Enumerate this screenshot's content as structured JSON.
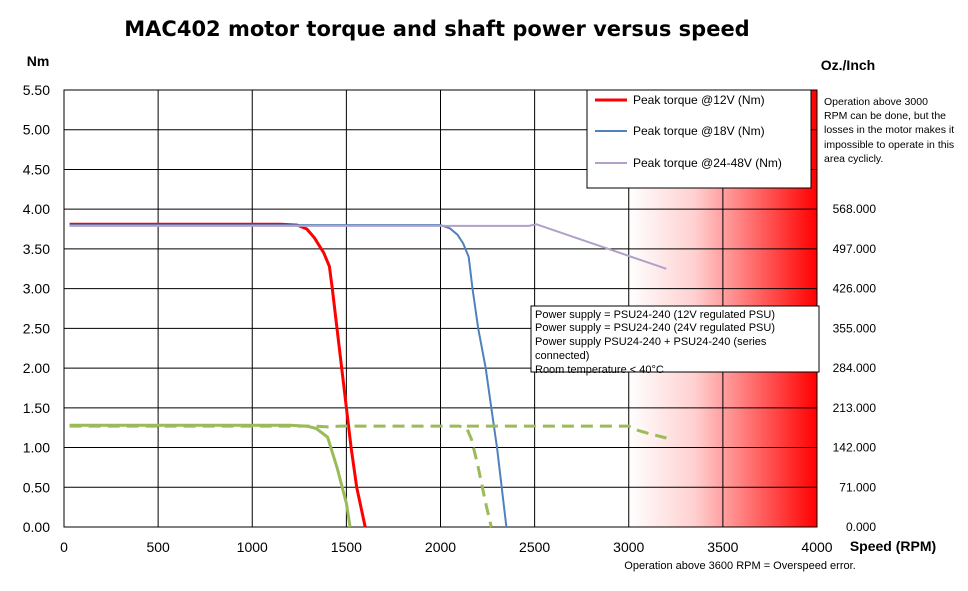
{
  "chart_data": {
    "type": "line",
    "title": "MAC402 motor torque and shaft power versus speed",
    "xlabel": "Speed (RPM)",
    "ylabel": "Nm",
    "y2label": "Oz./Inch",
    "xlim": [
      0,
      4000
    ],
    "ylim": [
      0,
      5.5
    ],
    "grid": true,
    "x_ticks": [
      "0",
      "500",
      "1000",
      "1500",
      "2000",
      "2500",
      "3000",
      "3500",
      "4000"
    ],
    "y_ticks": [
      "0.00",
      "0.50",
      "1.00",
      "1.50",
      "2.00",
      "2.50",
      "3.00",
      "3.50",
      "4.00",
      "4.50",
      "5.00",
      "5.50"
    ],
    "y2_ticks": [
      {
        "y": 0.0,
        "label": "0.000"
      },
      {
        "y": 0.5,
        "label": "71.000"
      },
      {
        "y": 1.0,
        "label": "142.000"
      },
      {
        "y": 1.5,
        "label": "213.000"
      },
      {
        "y": 2.0,
        "label": "284.000"
      },
      {
        "y": 2.5,
        "label": "355.000"
      },
      {
        "y": 3.0,
        "label": "426.000"
      },
      {
        "y": 3.5,
        "label": "497.000"
      },
      {
        "y": 4.0,
        "label": "568.000"
      }
    ],
    "legend_position": "top-right",
    "series": [
      {
        "name": "Peak torque @12V (Nm)",
        "color": "#ff0000",
        "width": 3,
        "dash": "",
        "points": [
          [
            30,
            3.81
          ],
          [
            1150,
            3.81
          ],
          [
            1240,
            3.8
          ],
          [
            1290,
            3.75
          ],
          [
            1330,
            3.64
          ],
          [
            1380,
            3.45
          ],
          [
            1410,
            3.28
          ],
          [
            1425,
            3.0
          ],
          [
            1450,
            2.5
          ],
          [
            1475,
            2.0
          ],
          [
            1500,
            1.5
          ],
          [
            1525,
            1.0
          ],
          [
            1555,
            0.5
          ],
          [
            1600,
            0.0
          ]
        ]
      },
      {
        "name": "Peak torque @18V (Nm)",
        "color": "#4f81bd",
        "width": 2,
        "dash": "",
        "points": [
          [
            30,
            3.8
          ],
          [
            2000,
            3.8
          ],
          [
            2050,
            3.76
          ],
          [
            2090,
            3.68
          ],
          [
            2120,
            3.57
          ],
          [
            2150,
            3.4
          ],
          [
            2170,
            3.0
          ],
          [
            2200,
            2.5
          ],
          [
            2240,
            2.0
          ],
          [
            2270,
            1.5
          ],
          [
            2300,
            1.0
          ],
          [
            2325,
            0.5
          ],
          [
            2350,
            0.0
          ]
        ]
      },
      {
        "name": "Peak torque @24-48V (Nm)",
        "color": "#b1a0c7",
        "width": 2,
        "dash": "",
        "points": [
          [
            30,
            3.79
          ],
          [
            2470,
            3.79
          ],
          [
            2510,
            3.81
          ],
          [
            3200,
            3.25
          ]
        ]
      },
      {
        "name": "",
        "color": "#9bbb59",
        "width": 3,
        "dash": "",
        "points": [
          [
            30,
            1.28
          ],
          [
            1200,
            1.28
          ],
          [
            1290,
            1.27
          ],
          [
            1340,
            1.24
          ],
          [
            1400,
            1.13
          ],
          [
            1450,
            0.75
          ],
          [
            1500,
            0.3
          ],
          [
            1520,
            0.0
          ]
        ]
      },
      {
        "name": "",
        "color": "#9bbb59",
        "width": 3,
        "dash": "12,7",
        "points": [
          [
            30,
            1.27
          ],
          [
            1330,
            1.27
          ],
          [
            1400,
            1.26
          ],
          [
            1470,
            1.27
          ],
          [
            2100,
            1.27
          ],
          [
            2140,
            1.24
          ],
          [
            2165,
            1.1
          ],
          [
            2200,
            0.75
          ],
          [
            2240,
            0.3
          ],
          [
            2270,
            0.0
          ]
        ]
      },
      {
        "name": "",
        "color": "#9bbb59",
        "width": 3,
        "dash": "12,7",
        "points": [
          [
            2140,
            1.27
          ],
          [
            2950,
            1.27
          ],
          [
            3000,
            1.27
          ],
          [
            3030,
            1.23
          ],
          [
            3100,
            1.18
          ],
          [
            3200,
            1.12
          ]
        ]
      }
    ],
    "danger_zone": {
      "from_rpm": 3000,
      "to_rpm": 4000,
      "color": "#ff0000"
    },
    "annotations": {
      "overspeed_note": [
        "Operation above 3000",
        "RPM   can be done, but the",
        "losses in the motor makes it",
        "impossible to operate in this",
        "area cyclicly."
      ],
      "psu_box": [
        "Power supply = PSU24-240 (12V regulated PSU)",
        "Power supply = PSU24-240 (24V regulated PSU)",
        "Power supply PSU24-240 + PSU24-240 (series",
        "connected)",
        "Room temperature < 40°C"
      ],
      "footnote": "Operation above 3600 RPM = Overspeed error."
    }
  }
}
